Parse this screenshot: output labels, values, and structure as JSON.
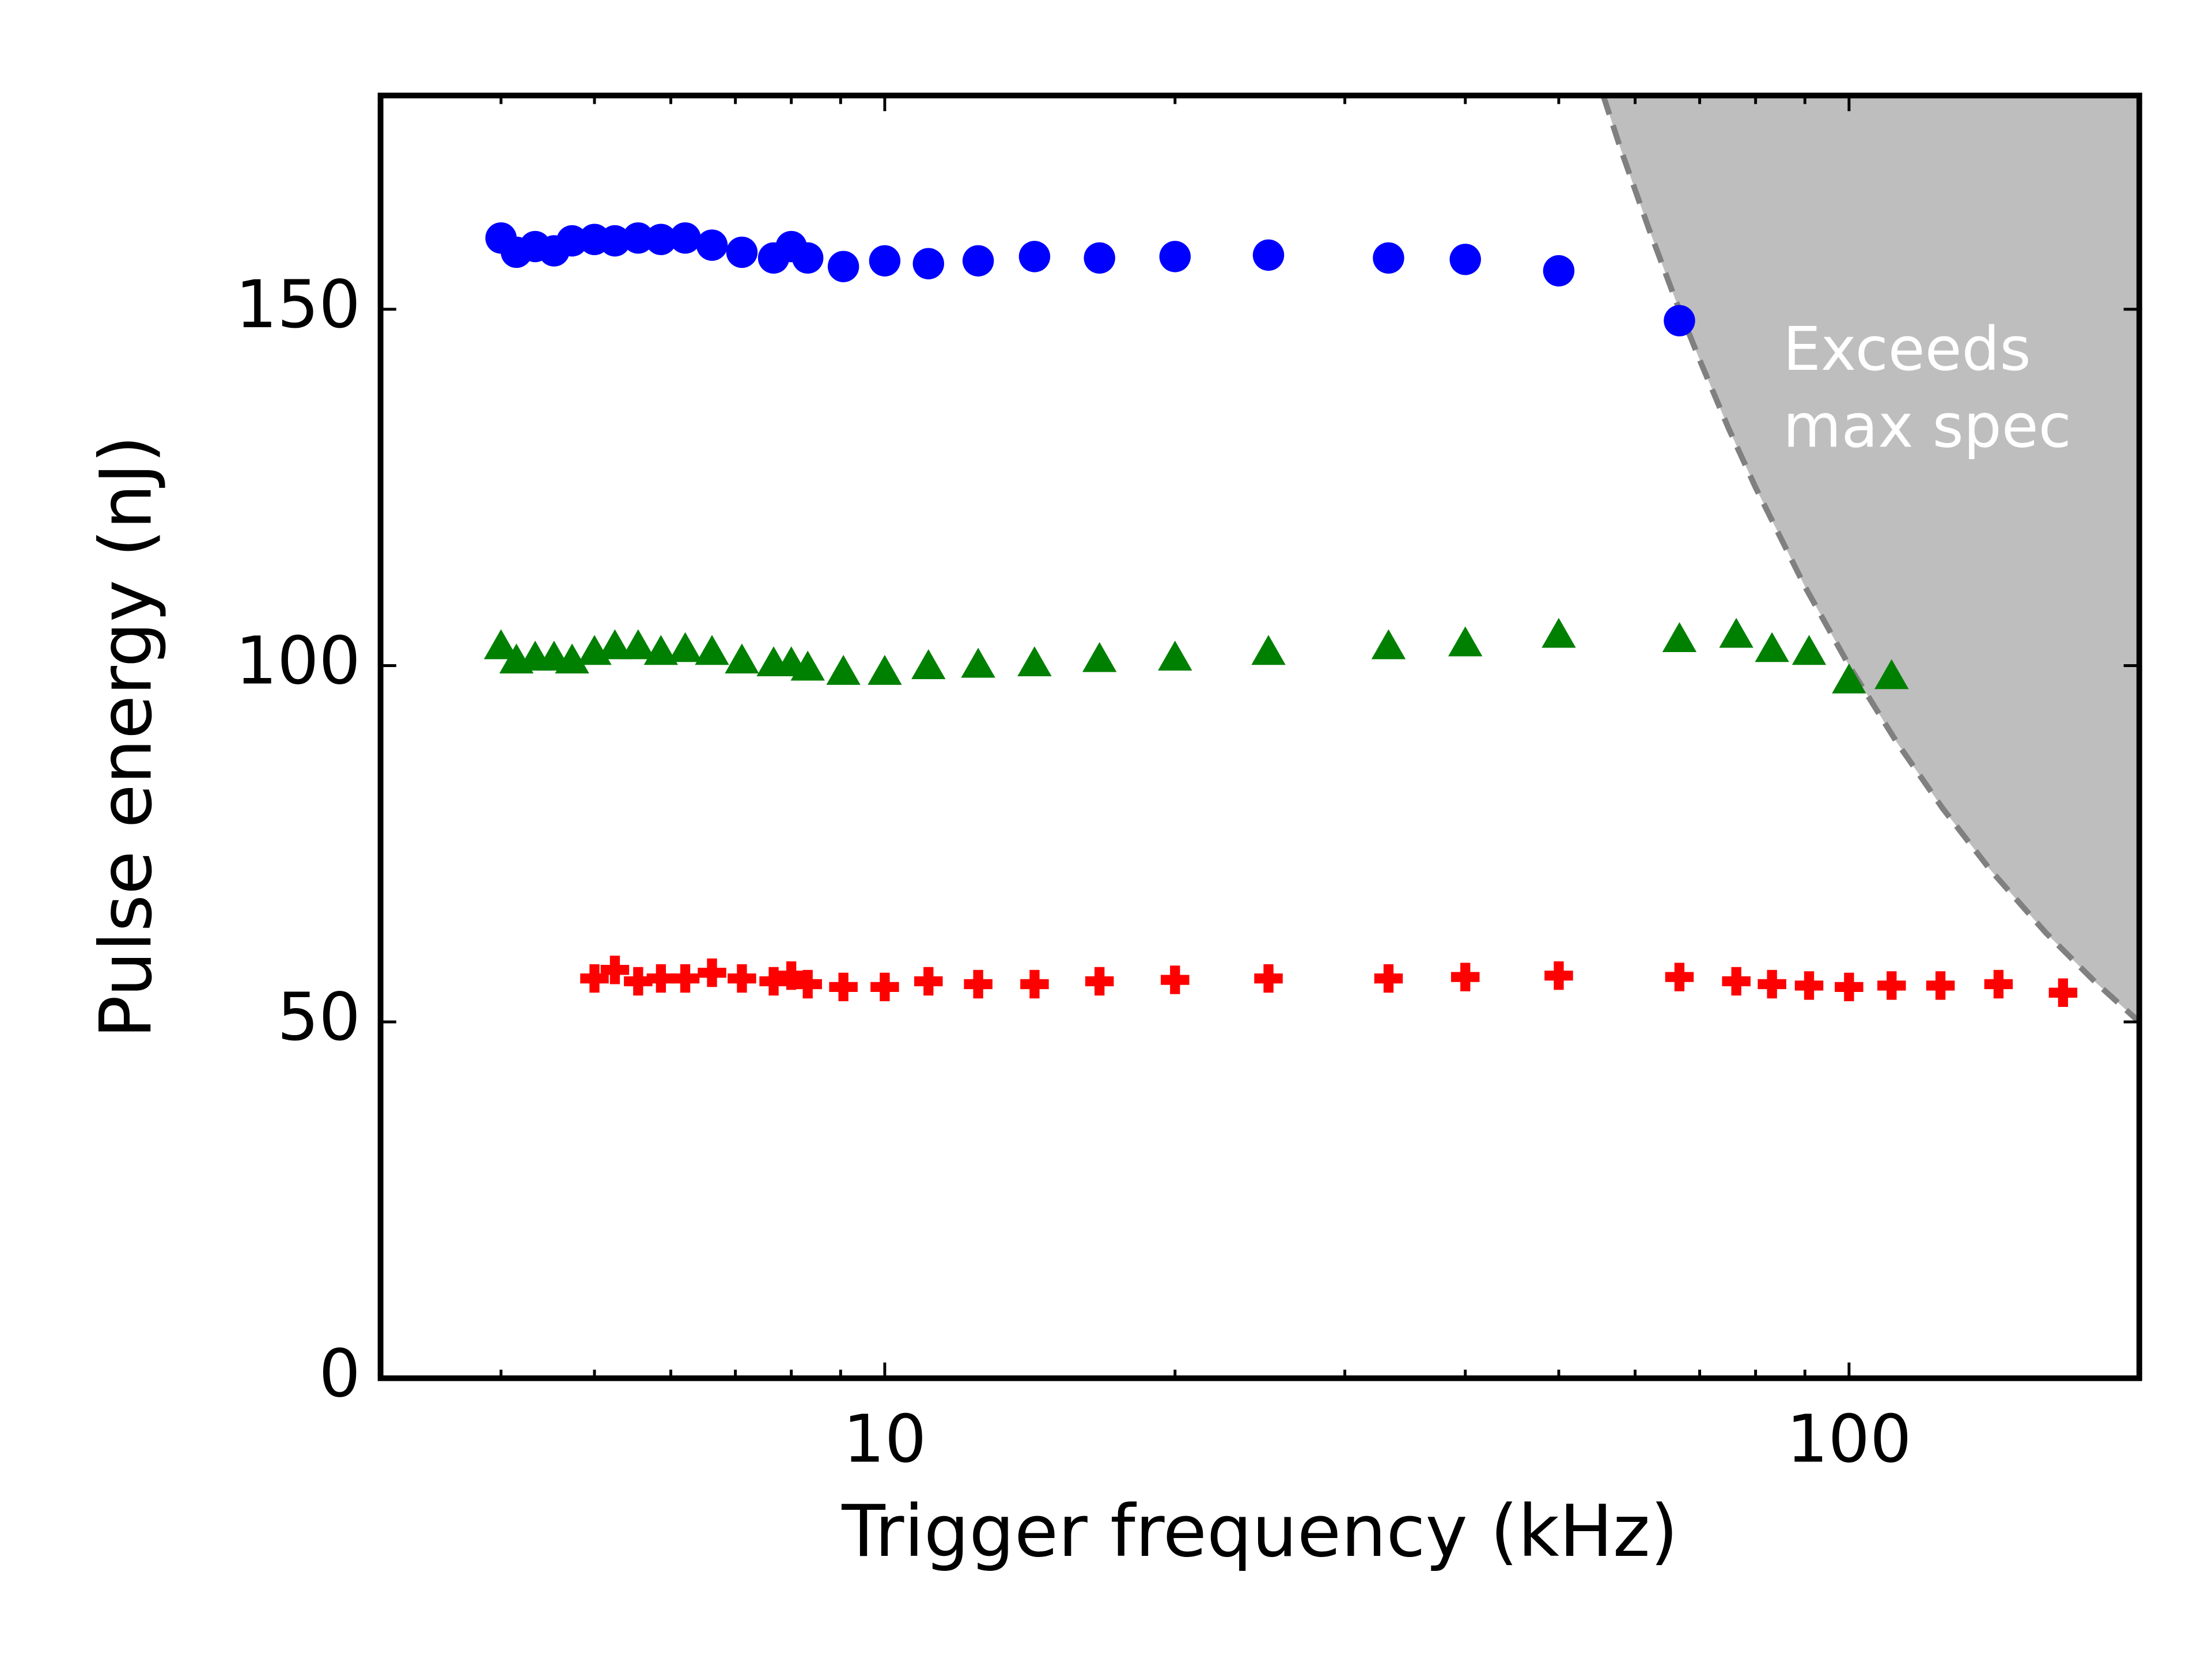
{
  "chart_data": {
    "type": "scatter",
    "xlabel": "Trigger frequency (kHz)",
    "ylabel": "Pulse energy (nJ)",
    "xscale": "log",
    "xlim": [
      3,
      200
    ],
    "ylim": [
      0,
      180
    ],
    "xticks": [
      10,
      100
    ],
    "xminorticks": [
      4,
      5,
      6,
      7,
      8,
      9,
      20,
      30,
      40,
      50,
      60,
      70,
      80,
      90,
      200
    ],
    "yticks": [
      0,
      50,
      100,
      150
    ],
    "series": [
      {
        "color": "#0000ff",
        "marker": "circle",
        "x": [
          4.0,
          4.15,
          4.34,
          4.54,
          4.74,
          5.0,
          5.25,
          5.55,
          5.86,
          6.21,
          6.62,
          7.11,
          7.67,
          8.0,
          8.32,
          9.06,
          10,
          11.1,
          12.5,
          14.3,
          16.7,
          20,
          25,
          33.3,
          40,
          50,
          66.7
        ],
        "values": [
          160.0,
          158.0,
          158.8,
          158.2,
          159.6,
          159.8,
          159.6,
          160.0,
          159.8,
          160.0,
          159.0,
          158.0,
          157.2,
          158.8,
          157.2,
          156.0,
          156.8,
          156.4,
          156.8,
          157.4,
          157.2,
          157.4,
          157.6,
          157.2,
          157.0,
          155.4,
          148.4
        ]
      },
      {
        "color": "#008000",
        "marker": "triangle",
        "x": [
          4.0,
          4.15,
          4.34,
          4.54,
          4.74,
          5.0,
          5.25,
          5.55,
          5.86,
          6.21,
          6.62,
          7.11,
          7.67,
          8.0,
          8.32,
          9.06,
          10,
          11.1,
          12.5,
          14.3,
          16.7,
          20,
          25,
          33.3,
          40,
          50,
          66.7,
          76.4,
          83.2,
          90.9,
          100,
          110.7
        ],
        "values": [
          102.7,
          100.7,
          101.1,
          101.1,
          100.7,
          101.9,
          102.7,
          102.7,
          101.9,
          102.3,
          101.9,
          100.7,
          100.3,
          100.3,
          99.7,
          99.1,
          99.1,
          99.9,
          100.1,
          100.3,
          100.9,
          101.1,
          101.9,
          102.7,
          103.1,
          104.3,
          103.7,
          104.3,
          102.3,
          101.9,
          97.9,
          98.5
        ]
      },
      {
        "color": "#ff0000",
        "marker": "plus",
        "x": [
          5.0,
          5.25,
          5.55,
          5.86,
          6.21,
          6.62,
          7.11,
          7.67,
          8.0,
          8.32,
          9.06,
          10,
          11.1,
          12.5,
          14.3,
          16.7,
          20,
          25,
          33.3,
          40,
          50,
          66.7,
          76.4,
          83.2,
          90.9,
          100,
          110.7,
          124.4,
          142.9,
          166.7
        ],
        "values": [
          56.1,
          57.3,
          55.7,
          56.1,
          56.1,
          56.9,
          56.1,
          55.7,
          56.5,
          55.3,
          54.9,
          54.9,
          55.7,
          55.3,
          55.3,
          55.7,
          55.9,
          56.1,
          56.1,
          56.3,
          56.5,
          56.3,
          55.7,
          55.3,
          55.1,
          54.9,
          55.1,
          55.1,
          55.3,
          54.1
        ]
      }
    ],
    "region": {
      "label_lines": [
        "Exceeds",
        "max spec"
      ],
      "fill": "#bebebe",
      "edge_color": "#808080",
      "x": [
        55.6,
        58,
        62,
        66,
        70,
        75,
        80,
        90,
        100,
        112,
        125,
        140,
        160,
        180,
        200
      ],
      "y": [
        180,
        172.4,
        161.3,
        151.5,
        142.9,
        133.3,
        125,
        111.1,
        100,
        89.3,
        80,
        71.4,
        62.5,
        55.6,
        50
      ]
    }
  }
}
